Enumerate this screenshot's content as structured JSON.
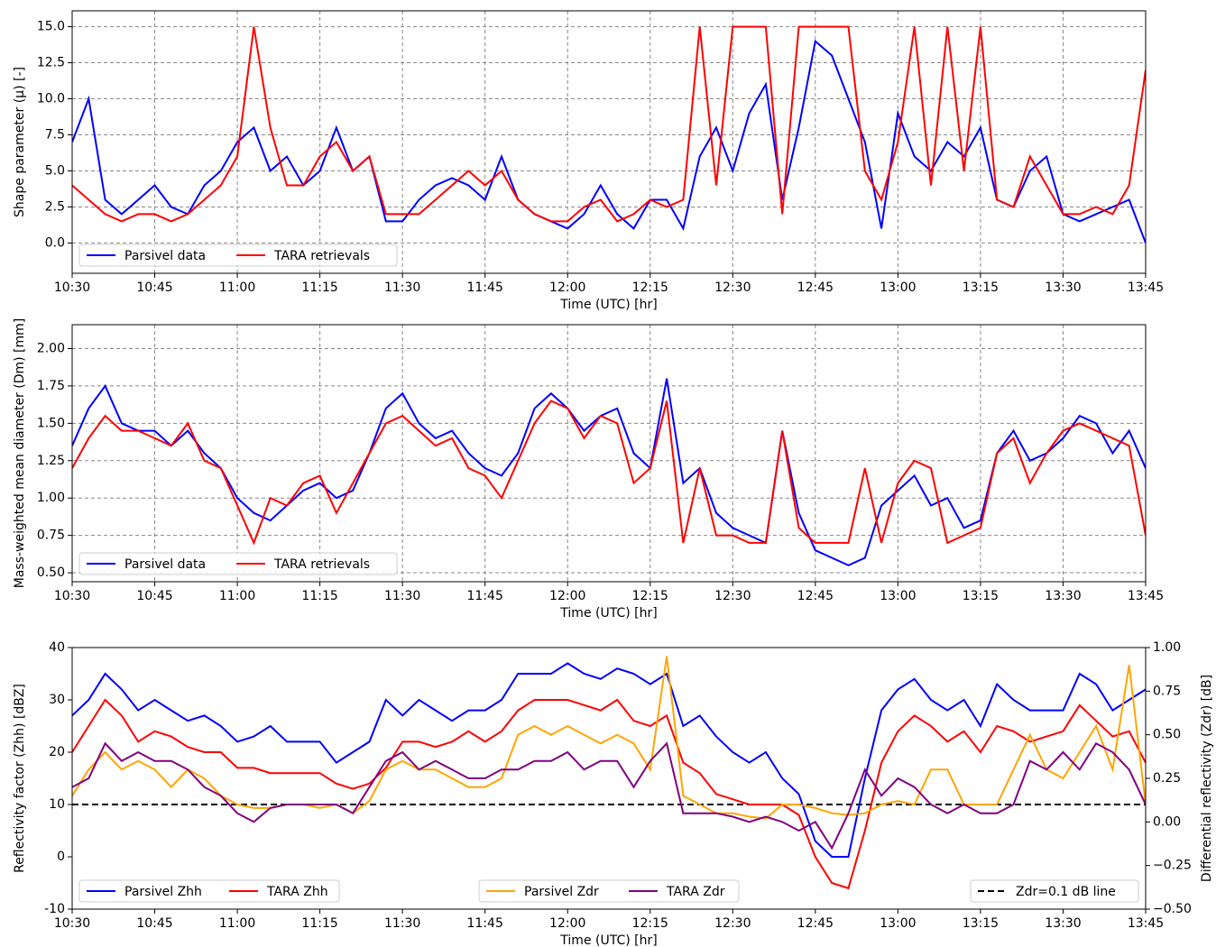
{
  "chart_data": [
    {
      "type": "line",
      "ylabel": "Shape parameter (μ) [-]",
      "xlabel": "Time (UTC) [hr]",
      "grid": true,
      "xlim": [
        "10:30",
        "13:45"
      ],
      "xticks": [
        "10:30",
        "10:45",
        "11:00",
        "11:15",
        "11:30",
        "11:45",
        "12:00",
        "12:15",
        "12:30",
        "12:45",
        "13:00",
        "13:15",
        "13:30",
        "13:45"
      ],
      "ylim": [
        -2.1,
        16.1
      ],
      "yticks": [
        {
          "value": 0,
          "label": "0.0"
        },
        {
          "value": 2.5,
          "label": "2.5"
        },
        {
          "value": 5,
          "label": "5.0"
        },
        {
          "value": 7.5,
          "label": "7.5"
        },
        {
          "value": 10,
          "label": "10.0"
        },
        {
          "value": 12.5,
          "label": "12.5"
        },
        {
          "value": 15,
          "label": "15.0"
        }
      ],
      "x": [
        "10:30",
        "10:33",
        "10:36",
        "10:39",
        "10:42",
        "10:45",
        "10:48",
        "10:51",
        "10:54",
        "10:57",
        "11:00",
        "11:03",
        "11:06",
        "11:09",
        "11:12",
        "11:15",
        "11:18",
        "11:21",
        "11:24",
        "11:27",
        "11:30",
        "11:33",
        "11:36",
        "11:39",
        "11:42",
        "11:45",
        "11:48",
        "11:51",
        "11:54",
        "11:57",
        "12:00",
        "12:03",
        "12:06",
        "12:09",
        "12:12",
        "12:15",
        "12:18",
        "12:21",
        "12:24",
        "12:27",
        "12:30",
        "12:33",
        "12:36",
        "12:39",
        "12:42",
        "12:45",
        "12:48",
        "12:51",
        "12:54",
        "12:57",
        "13:00",
        "13:03",
        "13:06",
        "13:09",
        "13:12",
        "13:15",
        "13:18",
        "13:21",
        "13:24",
        "13:27",
        "13:30",
        "13:33",
        "13:36",
        "13:39",
        "13:42",
        "13:45"
      ],
      "series": [
        {
          "name": "Parsivel data",
          "color": "#0000ff",
          "legend": "lower left",
          "values": [
            7,
            10,
            3,
            2,
            3,
            4,
            2.5,
            2,
            4,
            5,
            7,
            8,
            5,
            6,
            4,
            5,
            8,
            5,
            6,
            1.5,
            1.5,
            3,
            4,
            4.5,
            4,
            3,
            6,
            3,
            2,
            1.5,
            1,
            2,
            4,
            2,
            1,
            3,
            3,
            1,
            6,
            8,
            5,
            9,
            11,
            3,
            8,
            14,
            13,
            10,
            7,
            1,
            9,
            6,
            5,
            7,
            6,
            8,
            3,
            2.5,
            5,
            6,
            2,
            1.5,
            2,
            2.5,
            3,
            0
          ]
        },
        {
          "name": "TARA retrievals",
          "color": "#ff0000",
          "legend": "lower left",
          "values": [
            4,
            3,
            2,
            1.5,
            2,
            2,
            1.5,
            2,
            3,
            4,
            6,
            15,
            8,
            4,
            4,
            6,
            7,
            5,
            6,
            2,
            2,
            2,
            3,
            4,
            5,
            4,
            5,
            3,
            2,
            1.5,
            1.5,
            2.5,
            3,
            1.5,
            2,
            3,
            2.5,
            3,
            15,
            4,
            15,
            15,
            15,
            2,
            15,
            15,
            15,
            15,
            5,
            3,
            7,
            15,
            4,
            15,
            5,
            15,
            3,
            2.5,
            6,
            4,
            2,
            2,
            2.5,
            2,
            4,
            12
          ]
        }
      ]
    },
    {
      "type": "line",
      "ylabel": "Mass-weighted mean diameter (Dm) [mm]",
      "xlabel": "Time (UTC) [hr]",
      "grid": true,
      "xlim": [
        "10:30",
        "13:45"
      ],
      "xticks": [
        "10:30",
        "10:45",
        "11:00",
        "11:15",
        "11:30",
        "11:45",
        "12:00",
        "12:15",
        "12:30",
        "12:45",
        "13:00",
        "13:15",
        "13:30",
        "13:45"
      ],
      "ylim": [
        0.44,
        2.16
      ],
      "yticks": [
        {
          "value": 0.5,
          "label": "0.50"
        },
        {
          "value": 0.75,
          "label": "0.75"
        },
        {
          "value": 1,
          "label": "1.00"
        },
        {
          "value": 1.25,
          "label": "1.25"
        },
        {
          "value": 1.5,
          "label": "1.50"
        },
        {
          "value": 1.75,
          "label": "1.75"
        },
        {
          "value": 2,
          "label": "2.00"
        }
      ],
      "x": [
        "10:30",
        "10:33",
        "10:36",
        "10:39",
        "10:42",
        "10:45",
        "10:48",
        "10:51",
        "10:54",
        "10:57",
        "11:00",
        "11:03",
        "11:06",
        "11:09",
        "11:12",
        "11:15",
        "11:18",
        "11:21",
        "11:24",
        "11:27",
        "11:30",
        "11:33",
        "11:36",
        "11:39",
        "11:42",
        "11:45",
        "11:48",
        "11:51",
        "11:54",
        "11:57",
        "12:00",
        "12:03",
        "12:06",
        "12:09",
        "12:12",
        "12:15",
        "12:18",
        "12:21",
        "12:24",
        "12:27",
        "12:30",
        "12:33",
        "12:36",
        "12:39",
        "12:42",
        "12:45",
        "12:48",
        "12:51",
        "12:54",
        "12:57",
        "13:00",
        "13:03",
        "13:06",
        "13:09",
        "13:12",
        "13:15",
        "13:18",
        "13:21",
        "13:24",
        "13:27",
        "13:30",
        "13:33",
        "13:36",
        "13:39",
        "13:42",
        "13:45"
      ],
      "series": [
        {
          "name": "Parsivel data",
          "color": "#0000ff",
          "legend": "lower left",
          "values": [
            1.35,
            1.6,
            1.75,
            1.5,
            1.45,
            1.45,
            1.35,
            1.45,
            1.3,
            1.2,
            1.0,
            0.9,
            0.85,
            0.95,
            1.05,
            1.1,
            1.0,
            1.05,
            1.3,
            1.6,
            1.7,
            1.5,
            1.4,
            1.45,
            1.3,
            1.2,
            1.15,
            1.3,
            1.6,
            1.7,
            1.6,
            1.45,
            1.55,
            1.6,
            1.3,
            1.2,
            1.8,
            1.1,
            1.2,
            0.9,
            0.8,
            0.75,
            0.7,
            1.45,
            0.9,
            0.65,
            0.6,
            0.55,
            0.6,
            0.95,
            1.05,
            1.15,
            0.95,
            1.0,
            0.8,
            0.85,
            1.3,
            1.45,
            1.25,
            1.3,
            1.4,
            1.55,
            1.5,
            1.3,
            1.45,
            1.2
          ]
        },
        {
          "name": "TARA retrievals",
          "color": "#ff0000",
          "legend": "lower left",
          "values": [
            1.2,
            1.4,
            1.55,
            1.45,
            1.45,
            1.4,
            1.35,
            1.5,
            1.25,
            1.2,
            0.95,
            0.7,
            1.0,
            0.95,
            1.1,
            1.15,
            0.9,
            1.1,
            1.3,
            1.5,
            1.55,
            1.45,
            1.35,
            1.4,
            1.2,
            1.15,
            1.0,
            1.25,
            1.5,
            1.65,
            1.6,
            1.4,
            1.55,
            1.5,
            1.1,
            1.2,
            1.65,
            0.7,
            1.2,
            0.75,
            0.75,
            0.7,
            0.7,
            1.45,
            0.8,
            0.7,
            0.7,
            0.7,
            1.2,
            0.7,
            1.1,
            1.25,
            1.2,
            0.7,
            0.75,
            0.8,
            1.3,
            1.4,
            1.1,
            1.3,
            1.45,
            1.5,
            1.45,
            1.4,
            1.35,
            0.75
          ]
        }
      ]
    },
    {
      "type": "line",
      "ylabel": "Reflectivity factor (Zhh) [dBZ]",
      "y2label": "Differential reflectivity (Zdr) [dB]",
      "xlabel": "Time (UTC) [hr]",
      "grid": false,
      "xlim": [
        "10:30",
        "13:45"
      ],
      "xticks": [
        "10:30",
        "10:45",
        "11:00",
        "11:15",
        "11:30",
        "11:45",
        "12:00",
        "12:15",
        "12:30",
        "12:45",
        "13:00",
        "13:15",
        "13:30",
        "13:45"
      ],
      "ylim": [
        -10,
        40
      ],
      "yticks": [
        -10,
        0,
        10,
        20,
        30,
        40
      ],
      "y2lim": [
        -0.5,
        1
      ],
      "y2ticks": [
        {
          "value": -0.5,
          "label": "−0.50"
        },
        {
          "value": -0.25,
          "label": "−0.25"
        },
        {
          "value": 0,
          "label": "0.00"
        },
        {
          "value": 0.25,
          "label": "0.25"
        },
        {
          "value": 0.5,
          "label": "0.50"
        },
        {
          "value": 0.75,
          "label": "0.75"
        },
        {
          "value": 1,
          "label": "1.00"
        }
      ],
      "x": [
        "10:30",
        "10:33",
        "10:36",
        "10:39",
        "10:42",
        "10:45",
        "10:48",
        "10:51",
        "10:54",
        "10:57",
        "11:00",
        "11:03",
        "11:06",
        "11:09",
        "11:12",
        "11:15",
        "11:18",
        "11:21",
        "11:24",
        "11:27",
        "11:30",
        "11:33",
        "11:36",
        "11:39",
        "11:42",
        "11:45",
        "11:48",
        "11:51",
        "11:54",
        "11:57",
        "12:00",
        "12:03",
        "12:06",
        "12:09",
        "12:12",
        "12:15",
        "12:18",
        "12:21",
        "12:24",
        "12:27",
        "12:30",
        "12:33",
        "12:36",
        "12:39",
        "12:42",
        "12:45",
        "12:48",
        "12:51",
        "12:54",
        "12:57",
        "13:00",
        "13:03",
        "13:06",
        "13:09",
        "13:12",
        "13:15",
        "13:18",
        "13:21",
        "13:24",
        "13:27",
        "13:30",
        "13:33",
        "13:36",
        "13:39",
        "13:42",
        "13:45"
      ],
      "series": [
        {
          "name": "Parsivel Zhh",
          "color": "#0000ff",
          "legend": "lower left",
          "values": [
            27,
            30,
            35,
            32,
            28,
            30,
            28,
            26,
            27,
            25,
            22,
            23,
            25,
            22,
            22,
            22,
            18,
            20,
            22,
            30,
            27,
            30,
            28,
            26,
            28,
            28,
            30,
            35,
            35,
            35,
            37,
            35,
            34,
            36,
            35,
            33,
            35,
            25,
            27,
            23,
            20,
            18,
            20,
            15,
            12,
            3,
            0,
            0,
            15,
            28,
            32,
            34,
            30,
            28,
            30,
            25,
            33,
            30,
            28,
            28,
            28,
            35,
            33,
            28,
            30,
            32
          ]
        },
        {
          "name": "TARA Zhh",
          "color": "#ff0000",
          "legend": "lower left",
          "values": [
            20,
            25,
            30,
            27,
            22,
            24,
            23,
            21,
            20,
            20,
            17,
            17,
            16,
            16,
            16,
            16,
            14,
            13,
            14,
            17,
            22,
            22,
            21,
            22,
            24,
            22,
            24,
            28,
            30,
            30,
            30,
            29,
            28,
            30,
            26,
            25,
            27,
            18,
            16,
            12,
            11,
            10,
            10,
            10,
            8,
            0,
            -5,
            -6,
            5,
            18,
            24,
            27,
            25,
            22,
            24,
            20,
            25,
            24,
            22,
            23,
            24,
            29,
            26,
            23,
            24,
            18
          ]
        },
        {
          "name": "Parsivel Zdr",
          "color": "#ffa500",
          "axis": "y2",
          "legend": "lower center",
          "values": [
            0.15,
            0.3,
            0.4,
            0.3,
            0.35,
            0.3,
            0.2,
            0.3,
            0.25,
            0.15,
            0.1,
            0.08,
            0.08,
            0.1,
            0.1,
            0.08,
            0.1,
            0.05,
            0.12,
            0.3,
            0.35,
            0.3,
            0.3,
            0.25,
            0.2,
            0.2,
            0.25,
            0.5,
            0.55,
            0.5,
            0.55,
            0.5,
            0.45,
            0.5,
            0.45,
            0.3,
            0.95,
            0.15,
            0.1,
            0.05,
            0.05,
            0.03,
            0.02,
            0.1,
            0.1,
            0.08,
            0.05,
            0.04,
            0.05,
            0.1,
            0.12,
            0.1,
            0.3,
            0.3,
            0.1,
            0.1,
            0.1,
            0.3,
            0.5,
            0.3,
            0.25,
            0.4,
            0.55,
            0.3,
            0.9,
            0.1
          ]
        },
        {
          "name": "TARA Zdr",
          "color": "#800080",
          "axis": "y2",
          "legend": "lower center",
          "values": [
            0.2,
            0.25,
            0.45,
            0.35,
            0.4,
            0.35,
            0.35,
            0.3,
            0.2,
            0.15,
            0.05,
            0.0,
            0.08,
            0.1,
            0.1,
            0.1,
            0.1,
            0.05,
            0.2,
            0.35,
            0.4,
            0.3,
            0.35,
            0.3,
            0.25,
            0.25,
            0.3,
            0.3,
            0.35,
            0.35,
            0.4,
            0.3,
            0.35,
            0.35,
            0.2,
            0.35,
            0.45,
            0.05,
            0.05,
            0.05,
            0.03,
            0.0,
            0.03,
            0.0,
            -0.05,
            0.0,
            -0.15,
            0.05,
            0.3,
            0.15,
            0.25,
            0.2,
            0.1,
            0.05,
            0.1,
            0.05,
            0.05,
            0.1,
            0.35,
            0.3,
            0.4,
            0.3,
            0.45,
            0.4,
            0.3,
            0.1
          ]
        }
      ],
      "reference_lines": [
        {
          "name": "Zdr=0.1 dB line",
          "value": 0.1,
          "axis": "y2",
          "color": "#000000",
          "style": "dashed",
          "legend": "lower right"
        }
      ]
    }
  ]
}
